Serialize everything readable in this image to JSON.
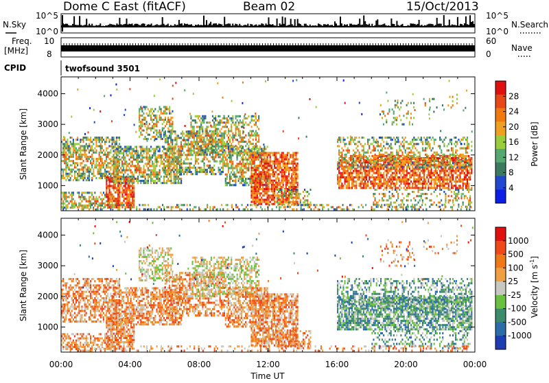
{
  "header": {
    "title": "Dome C East (fitACF)",
    "beam": "Beam 02",
    "date": "15/Oct/2013"
  },
  "noise_panel": {
    "left_label": "N.Sky",
    "left_ticks": [
      "10^5",
      "10^0"
    ],
    "right_ticks": [
      "10^5",
      "10^0"
    ],
    "right_label": "N.Search"
  },
  "freq_panel": {
    "left_label_line1": "Freq.",
    "left_label_line2": "[MHz]",
    "left_ticks": [
      "10",
      "8"
    ],
    "right_ticks": [
      "60",
      "0"
    ],
    "right_label": "Nave"
  },
  "cpid": {
    "label": "CPID",
    "value": "twofsound 3501"
  },
  "chart_data": [
    {
      "type": "heatmap",
      "name": "power",
      "ylabel": "Slant Range [km]",
      "xlabel": "",
      "ylim": [
        180,
        4550
      ],
      "yticks": [
        "1000",
        "2000",
        "3000",
        "4000"
      ],
      "colorbar_label": "Power [dB]",
      "colorbar_ticks": [
        "4",
        "8",
        "12",
        "16",
        "20",
        "24",
        "28"
      ],
      "colors": [
        "#0a1ee6",
        "#2048d0",
        "#3c7a60",
        "#54a870",
        "#9acd3c",
        "#f0a020",
        "#f07a10",
        "#e84818",
        "#e01010"
      ]
    },
    {
      "type": "heatmap",
      "name": "velocity",
      "ylabel": "Slant Range [km]",
      "xlabel": "Time UT",
      "ylim": [
        180,
        4550
      ],
      "yticks": [
        "1000",
        "2000",
        "3000",
        "4000"
      ],
      "colorbar_label": "Velocity [m s",
      "colorbar_label_sup": "-1",
      "colorbar_label_end": "]",
      "colorbar_ticks": [
        "1000",
        "500",
        "100",
        "25",
        "-25",
        "-100",
        "-500",
        "-1000"
      ],
      "colors": [
        "#1e3cb4",
        "#2c6ca8",
        "#3c8c6c",
        "#6cc040",
        "#c8c8c0",
        "#f0a040",
        "#f07818",
        "#f04818",
        "#e01010"
      ]
    }
  ],
  "time_axis": {
    "label": "Time UT",
    "ticks": [
      "00:00",
      "04:00",
      "08:00",
      "12:00",
      "16:00",
      "20:00",
      "00:00"
    ]
  }
}
